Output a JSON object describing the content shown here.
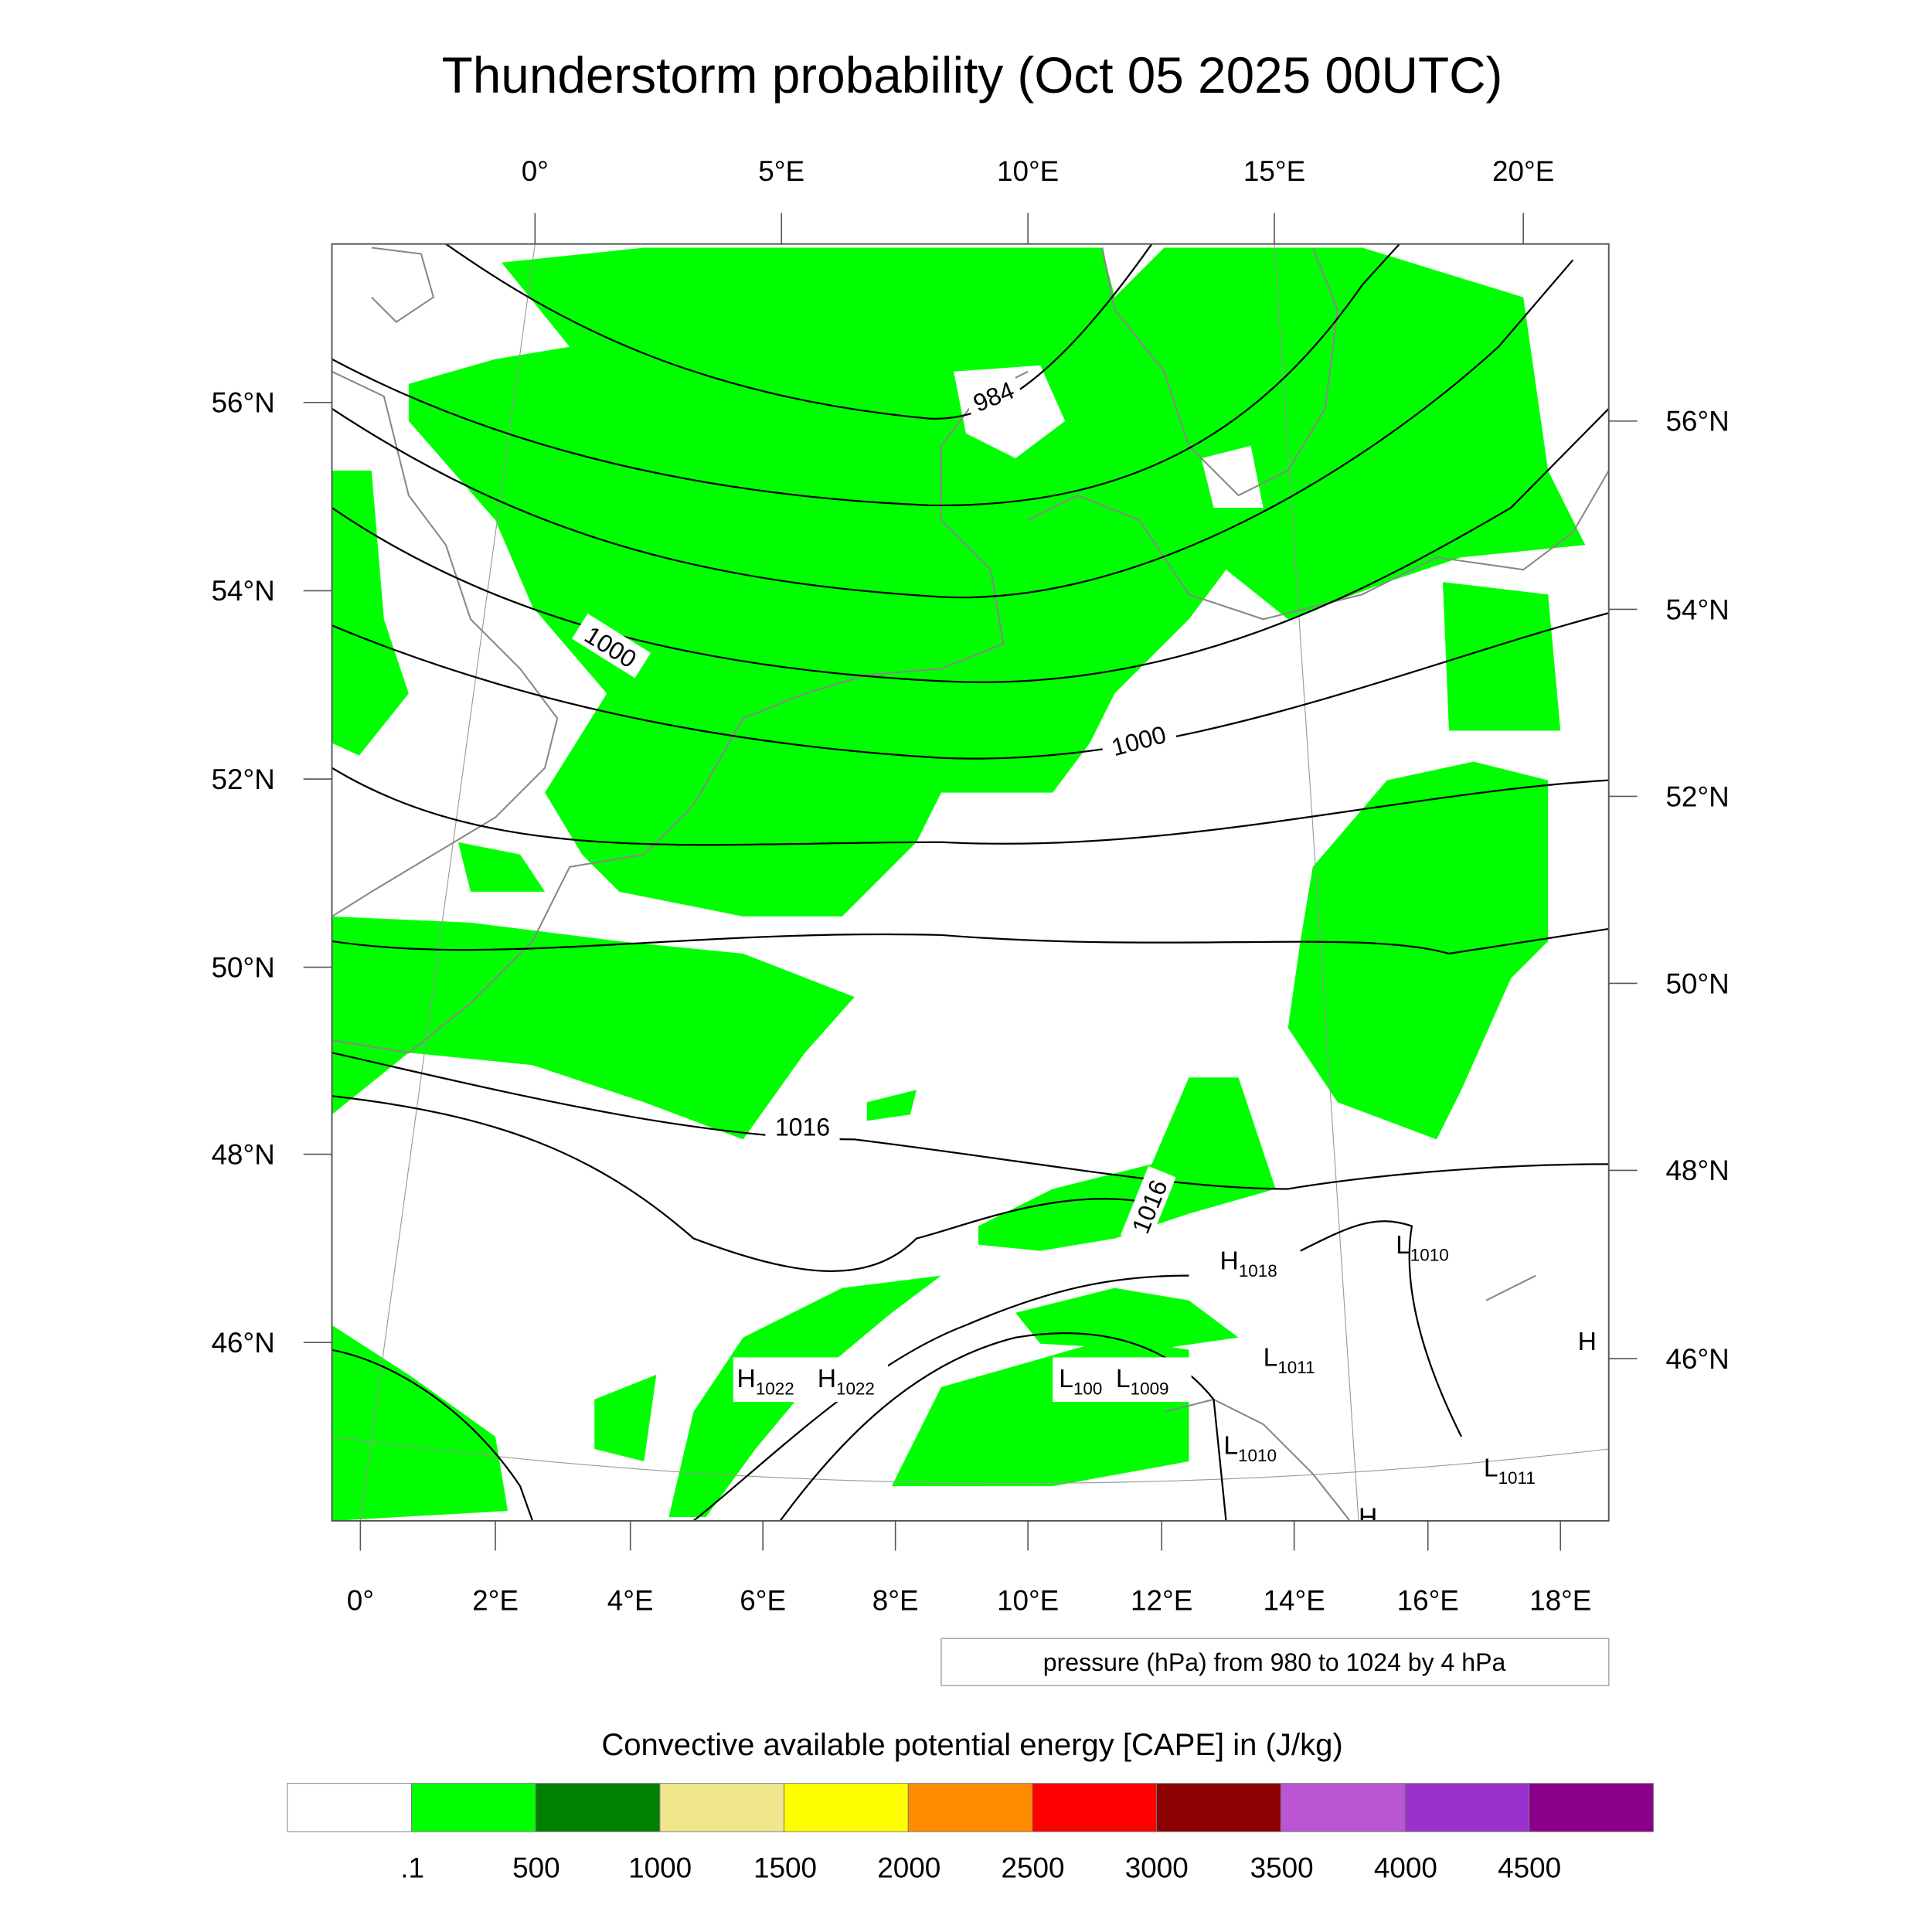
{
  "title": "Thunderstorm probability (Oct 05 2025 00UTC)",
  "map": {
    "top_lon_labels": [
      "0°",
      "5°E",
      "10°E",
      "15°E",
      "20°E"
    ],
    "left_lat_labels": [
      "56°N",
      "54°N",
      "52°N",
      "50°N",
      "48°N",
      "46°N"
    ],
    "right_lat_labels": [
      "56°N",
      "54°N",
      "52°N",
      "50°N",
      "48°N",
      "46°N"
    ],
    "bottom_lon_labels": [
      "0°",
      "2°E",
      "4°E",
      "6°E",
      "8°E",
      "10°E",
      "12°E",
      "14°E",
      "16°E",
      "18°E"
    ],
    "contour_labels": [
      "984",
      "1000",
      "1000",
      "1016",
      "1016"
    ],
    "pressure_centers": [
      {
        "type": "H",
        "value": "1022"
      },
      {
        "type": "H",
        "value": "1022"
      },
      {
        "type": "L",
        "value": "100"
      },
      {
        "type": "L",
        "value": "1009"
      },
      {
        "type": "H",
        "value": "1018"
      },
      {
        "type": "L",
        "value": "1010"
      },
      {
        "type": "L",
        "value": "1011"
      },
      {
        "type": "L",
        "value": "1010"
      },
      {
        "type": "L",
        "value": "1011"
      },
      {
        "type": "H",
        "value": ""
      },
      {
        "type": "H",
        "value": ""
      }
    ],
    "contour_note": "pressure (hPa) from 980 to 1024 by 4 hPa",
    "shading_color": "#00ff00"
  },
  "colorbar": {
    "title": "Convective available potential energy [CAPE] in (J/kg)",
    "colors": [
      "#ffffff",
      "#00ff00",
      "#008000",
      "#f0e68c",
      "#ffff00",
      "#ff8c00",
      "#ff0000",
      "#8b0000",
      "#ba55d3",
      "#9932cc",
      "#8b008b"
    ],
    "labels": [
      ".1",
      "500",
      "1000",
      "1500",
      "2000",
      "2500",
      "3000",
      "3500",
      "4000",
      "4500"
    ]
  }
}
